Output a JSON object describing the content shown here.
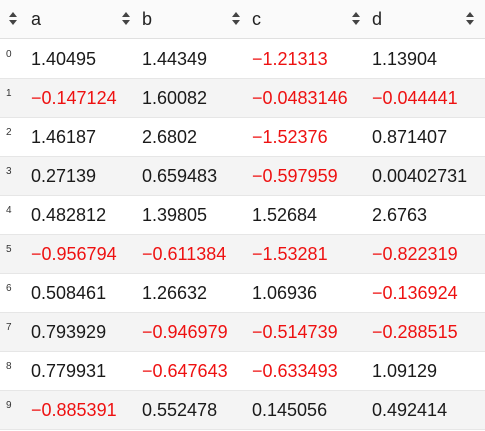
{
  "colors": {
    "negative": "#ee1111",
    "positive": "#1a1a1a",
    "header_bg": "#fafafa",
    "row_even": "#ffffff",
    "row_odd": "#f4f4f4"
  },
  "header": {
    "columns": [
      {
        "label": "a",
        "icon": "sort-arrows-icon"
      },
      {
        "label": "b",
        "icon": "sort-arrows-icon"
      },
      {
        "label": "c",
        "icon": "sort-arrows-icon"
      },
      {
        "label": "d",
        "icon": "sort-arrows-icon"
      }
    ],
    "index_icon": "sort-arrows-icon"
  },
  "rows": [
    {
      "index": "0",
      "cells": [
        "1.40495",
        "1.44349",
        "−1.21313",
        "1.13904"
      ]
    },
    {
      "index": "1",
      "cells": [
        "−0.147124",
        "1.60082",
        "−0.0483146",
        "−0.044441"
      ]
    },
    {
      "index": "2",
      "cells": [
        "1.46187",
        "2.6802",
        "−1.52376",
        "0.871407"
      ]
    },
    {
      "index": "3",
      "cells": [
        "0.27139",
        "0.659483",
        "−0.597959",
        "0.00402731"
      ]
    },
    {
      "index": "4",
      "cells": [
        "0.482812",
        "1.39805",
        "1.52684",
        "2.6763"
      ]
    },
    {
      "index": "5",
      "cells": [
        "−0.956794",
        "−0.611384",
        "−1.53281",
        "−0.822319"
      ]
    },
    {
      "index": "6",
      "cells": [
        "0.508461",
        "1.26632",
        "1.06936",
        "−0.136924"
      ]
    },
    {
      "index": "7",
      "cells": [
        "0.793929",
        "−0.946979",
        "−0.514739",
        "−0.288515"
      ]
    },
    {
      "index": "8",
      "cells": [
        "0.779931",
        "−0.647643",
        "−0.633493",
        "1.09129"
      ]
    },
    {
      "index": "9",
      "cells": [
        "−0.885391",
        "0.552478",
        "0.145056",
        "0.492414"
      ]
    }
  ]
}
